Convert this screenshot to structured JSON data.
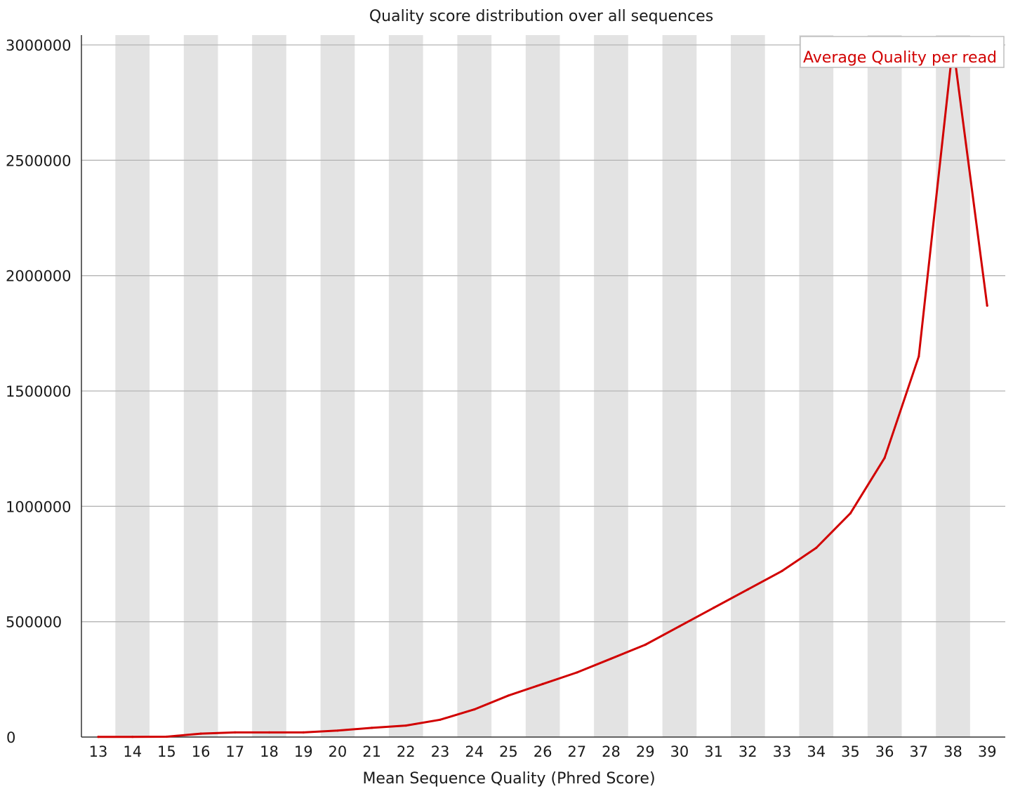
{
  "chart_data": {
    "type": "line",
    "title": "Quality score distribution over all sequences",
    "xlabel": "Mean Sequence Quality (Phred Score)",
    "ylabel": "",
    "x": [
      "13",
      "14",
      "15",
      "16",
      "17",
      "18",
      "19",
      "20",
      "21",
      "22",
      "23",
      "24",
      "25",
      "26",
      "27",
      "28",
      "29",
      "30",
      "31",
      "32",
      "33",
      "34",
      "35",
      "36",
      "37",
      "38",
      "39"
    ],
    "ylim": [
      0,
      3000000
    ],
    "yticks": [
      "0",
      "500000",
      "1000000",
      "1500000",
      "2000000",
      "2500000",
      "3000000"
    ],
    "grid": "horizontal",
    "alternating_column_bands": true,
    "legend_position": "top-right",
    "series": [
      {
        "name": "Average Quality per read",
        "color": "#d10000",
        "values": [
          1000,
          1000,
          1500,
          15000,
          20000,
          20000,
          20000,
          28000,
          40000,
          50000,
          75000,
          120000,
          180000,
          230000,
          280000,
          340000,
          400000,
          480000,
          560000,
          640000,
          720000,
          820000,
          970000,
          1210000,
          1650000,
          3000000,
          1870000
        ]
      }
    ],
    "colors": {
      "band": "#e3e3e3",
      "gridline": "#b5b5b5",
      "axis": "#333333",
      "series": "#d10000"
    }
  }
}
